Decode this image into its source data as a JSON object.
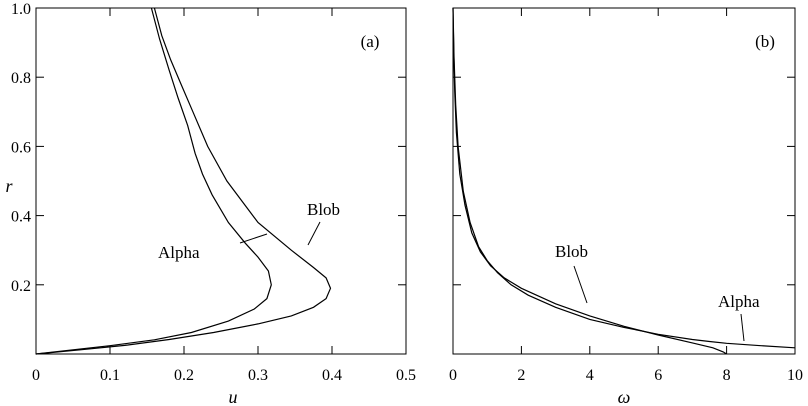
{
  "chart_data": [
    {
      "panel": "a",
      "panel_label": "(a)",
      "type": "line",
      "xlabel": "u",
      "ylabel": "r",
      "xlim": [
        0,
        0.5
      ],
      "ylim": [
        0,
        1.0
      ],
      "x_ticks": [
        0,
        0.1,
        0.2,
        0.3,
        0.4,
        0.5
      ],
      "y_ticks": [
        0.2,
        0.4,
        0.6,
        0.8,
        1.0
      ],
      "x_tick_labels": [
        "0",
        "0.1",
        "0.2",
        "0.3",
        "0.4",
        "0.5"
      ],
      "y_tick_labels": [
        "0.2",
        "0.4",
        "0.6",
        "0.8",
        "1.0"
      ],
      "grid": false,
      "series": [
        {
          "name": "Alpha",
          "x": [
            0,
            0.05,
            0.1,
            0.16,
            0.21,
            0.26,
            0.295,
            0.312,
            0.318,
            0.314,
            0.3,
            0.283,
            0.26,
            0.238,
            0.225,
            0.215,
            0.205,
            0.192,
            0.18,
            0.167,
            0.156
          ],
          "y": [
            0,
            0.012,
            0.024,
            0.041,
            0.062,
            0.095,
            0.13,
            0.16,
            0.2,
            0.24,
            0.28,
            0.32,
            0.38,
            0.46,
            0.52,
            0.58,
            0.66,
            0.74,
            0.82,
            0.91,
            1.0
          ]
        },
        {
          "name": "Blob",
          "x": [
            0,
            0.06,
            0.12,
            0.18,
            0.24,
            0.3,
            0.345,
            0.375,
            0.392,
            0.398,
            0.392,
            0.375,
            0.345,
            0.3,
            0.258,
            0.232,
            0.212,
            0.196,
            0.182,
            0.17,
            0.16
          ],
          "y": [
            0,
            0.012,
            0.025,
            0.042,
            0.062,
            0.087,
            0.11,
            0.135,
            0.16,
            0.19,
            0.22,
            0.25,
            0.3,
            0.38,
            0.5,
            0.6,
            0.7,
            0.78,
            0.85,
            0.92,
            1.0
          ]
        }
      ]
    },
    {
      "panel": "b",
      "panel_label": "(b)",
      "type": "line",
      "xlabel": "ω",
      "ylabel": "",
      "xlim": [
        0,
        10
      ],
      "ylim": [
        0,
        1.0
      ],
      "x_ticks": [
        0,
        2,
        4,
        6,
        8,
        10
      ],
      "y_ticks": [
        0.2,
        0.4,
        0.6,
        0.8,
        1.0
      ],
      "x_tick_labels": [
        "0",
        "2",
        "4",
        "6",
        "8",
        "10"
      ],
      "grid": false,
      "series": [
        {
          "name": "Alpha",
          "x": [
            0.0,
            0.02,
            0.05,
            0.1,
            0.2,
            0.35,
            0.55,
            0.8,
            1.1,
            1.5,
            2.0,
            3.0,
            4.0,
            5.0,
            6.0,
            7.0,
            7.6,
            7.9,
            8.0
          ],
          "y": [
            1.0,
            0.88,
            0.76,
            0.64,
            0.52,
            0.43,
            0.35,
            0.295,
            0.255,
            0.22,
            0.19,
            0.145,
            0.11,
            0.08,
            0.055,
            0.032,
            0.018,
            0.006,
            0.0
          ]
        },
        {
          "name": "Blob",
          "x": [
            0.0,
            0.03,
            0.08,
            0.15,
            0.3,
            0.5,
            0.75,
            1.0,
            1.3,
            1.7,
            2.2,
            3.0,
            4.0,
            5.0,
            6.0,
            7.0,
            7.5,
            8.0,
            9.0,
            10.0
          ],
          "y": [
            1.0,
            0.86,
            0.72,
            0.6,
            0.47,
            0.38,
            0.31,
            0.27,
            0.235,
            0.2,
            0.17,
            0.135,
            0.1,
            0.077,
            0.057,
            0.042,
            0.036,
            0.031,
            0.024,
            0.018
          ]
        }
      ]
    }
  ],
  "annotations": {
    "a_alpha": "Alpha",
    "a_blob": "Blob",
    "b_alpha": "Alpha",
    "b_blob": "Blob"
  }
}
